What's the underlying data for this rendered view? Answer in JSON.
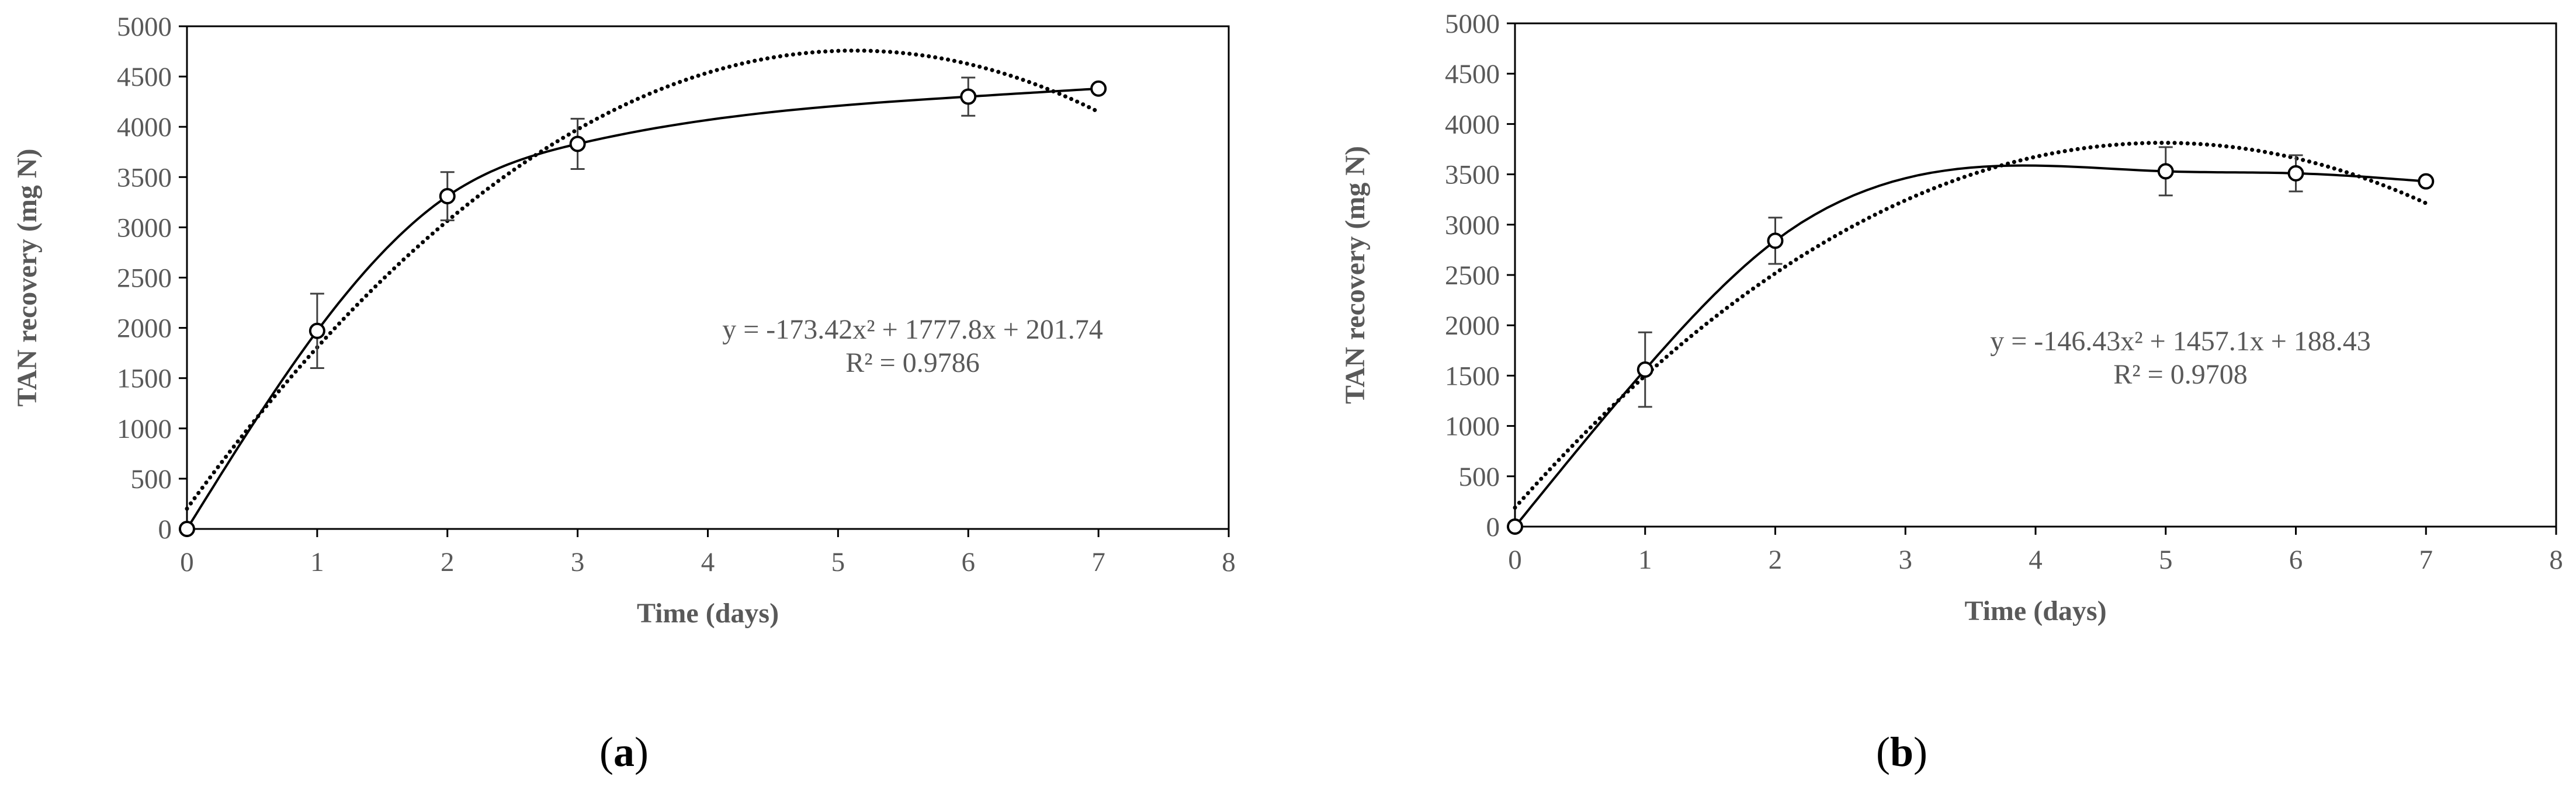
{
  "colors": {
    "axis": "#000000",
    "text": "#595959",
    "series_line": "#000000",
    "marker_fill": "#ffffff",
    "trendline": "#000000",
    "error_bar": "#404040"
  },
  "chart_data": [
    {
      "type": "scatter",
      "panel_label": {
        "open": "(",
        "letter": "a",
        "close": ")"
      },
      "xlabel": "Time (days)",
      "ylabel": "TAN recovery (mg N)",
      "xlim": [
        0,
        8
      ],
      "ylim": [
        0,
        5000
      ],
      "x_ticks": [
        "0",
        "1",
        "2",
        "3",
        "4",
        "5",
        "6",
        "7",
        "8"
      ],
      "y_ticks": [
        "0",
        "500",
        "1000",
        "1500",
        "2000",
        "2500",
        "3000",
        "3500",
        "4000",
        "4500",
        "5000"
      ],
      "grid": false,
      "series": [
        {
          "x": [
            0,
            1,
            2,
            3,
            6,
            7
          ],
          "y": [
            0,
            1970,
            3310,
            3830,
            4300,
            4380
          ],
          "error": [
            0,
            370,
            240,
            250,
            190,
            0
          ],
          "line": "smoothed solid",
          "marker": "open circle"
        }
      ],
      "trendline": {
        "type": "polynomial order 2",
        "coefficients": [
          -173.42,
          1777.8,
          201.74
        ],
        "x_range": [
          0,
          7
        ],
        "style": "dotted"
      },
      "equation": "y = -173.42x² + 1777.8x + 201.74",
      "r_squared": "R² = 0.9786"
    },
    {
      "type": "scatter",
      "panel_label": {
        "open": "(",
        "letter": "b",
        "close": ")"
      },
      "xlabel": "Time (days)",
      "ylabel": "TAN recovery (mg N)",
      "xlim": [
        0,
        8
      ],
      "ylim": [
        0,
        5000
      ],
      "x_ticks": [
        "0",
        "1",
        "2",
        "3",
        "4",
        "5",
        "6",
        "7",
        "8"
      ],
      "y_ticks": [
        "0",
        "500",
        "1000",
        "1500",
        "2000",
        "2500",
        "3000",
        "3500",
        "4000",
        "4500",
        "5000"
      ],
      "grid": false,
      "series": [
        {
          "x": [
            0,
            1,
            2,
            5,
            6,
            7
          ],
          "y": [
            0,
            1560,
            2840,
            3530,
            3510,
            3430
          ],
          "error": [
            0,
            370,
            230,
            240,
            180,
            0
          ],
          "line": "smoothed solid",
          "marker": "open circle"
        }
      ],
      "trendline": {
        "type": "polynomial order 2",
        "coefficients": [
          -146.43,
          1457.1,
          188.43
        ],
        "x_range": [
          0,
          7
        ],
        "style": "dotted"
      },
      "equation": "y = -146.43x² + 1457.1x + 188.43",
      "r_squared": "R² = 0.9708"
    }
  ]
}
